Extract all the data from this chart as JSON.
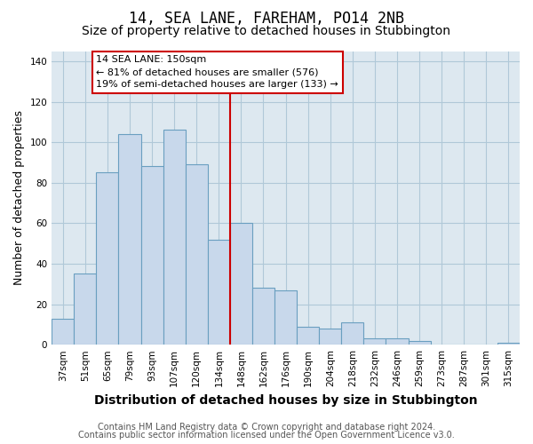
{
  "title": "14, SEA LANE, FAREHAM, PO14 2NB",
  "subtitle": "Size of property relative to detached houses in Stubbington",
  "xlabel": "Distribution of detached houses by size in Stubbington",
  "ylabel": "Number of detached properties",
  "bar_labels": [
    "37sqm",
    "51sqm",
    "65sqm",
    "79sqm",
    "93sqm",
    "107sqm",
    "120sqm",
    "134sqm",
    "148sqm",
    "162sqm",
    "176sqm",
    "190sqm",
    "204sqm",
    "218sqm",
    "232sqm",
    "246sqm",
    "259sqm",
    "273sqm",
    "287sqm",
    "301sqm",
    "315sqm"
  ],
  "bar_values": [
    13,
    35,
    85,
    104,
    88,
    106,
    89,
    52,
    60,
    28,
    27,
    9,
    8,
    11,
    3,
    3,
    2,
    0,
    0,
    0,
    1
  ],
  "bar_color": "#c8d8eb",
  "bar_edge_color": "#6a9fc0",
  "vline_color": "#cc0000",
  "annotation_line1": "14 SEA LANE: 150sqm",
  "annotation_line2": "← 81% of detached houses are smaller (576)",
  "annotation_line3": "19% of semi-detached houses are larger (133) →",
  "annotation_box_facecolor": "#ffffff",
  "annotation_box_edgecolor": "#cc0000",
  "ylim": [
    0,
    145
  ],
  "yticks": [
    0,
    20,
    40,
    60,
    80,
    100,
    120,
    140
  ],
  "bg_color": "#ffffff",
  "plot_bg_color": "#dde8f0",
  "grid_color": "#b0c8d8",
  "title_fontsize": 12,
  "subtitle_fontsize": 10,
  "xlabel_fontsize": 10,
  "ylabel_fontsize": 9,
  "tick_fontsize": 7.5,
  "annotation_fontsize": 8,
  "footer_fontsize": 7,
  "footer_line1": "Contains HM Land Registry data © Crown copyright and database right 2024.",
  "footer_line2": "Contains public sector information licensed under the Open Government Licence v3.0."
}
